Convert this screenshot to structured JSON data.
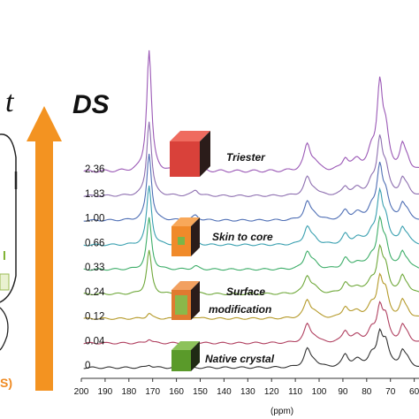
{
  "chart_data": {
    "type": "line",
    "xlabel": "(ppm)",
    "x_ticks": [
      "200",
      "190",
      "180",
      "170",
      "160",
      "150",
      "140",
      "130",
      "120",
      "110",
      "100",
      "90",
      "80",
      "70",
      "60"
    ],
    "xlim": [
      200,
      58
    ],
    "xaxis_reversed": true,
    "ds_header": "DS",
    "left_header": "t",
    "series": [
      {
        "name": "2.36",
        "color": "#9b59b6"
      },
      {
        "name": "1.83",
        "color": "#8e6fb0"
      },
      {
        "name": "1.00",
        "color": "#4f6fb5"
      },
      {
        "name": "0.66",
        "color": "#3aa0b0"
      },
      {
        "name": "0.33",
        "color": "#3fae6a"
      },
      {
        "name": "0.24",
        "color": "#6fa83a"
      },
      {
        "name": "0.12",
        "color": "#b59a2a"
      },
      {
        "name": "0.04",
        "color": "#b04060"
      },
      {
        "name": "0",
        "color": "#333333"
      }
    ],
    "annotations": [
      {
        "text": "Triester",
        "color": "#d9413a"
      },
      {
        "text": "Skin to core",
        "color": "#f08a2a"
      },
      {
        "text": "Surface",
        "color": "#e07a30"
      },
      {
        "text": "modification",
        "color": "#e07a30"
      },
      {
        "text": "Native crystal",
        "color": "#5a9a2a"
      }
    ],
    "left_fragments": [
      "l",
      "S)"
    ]
  }
}
